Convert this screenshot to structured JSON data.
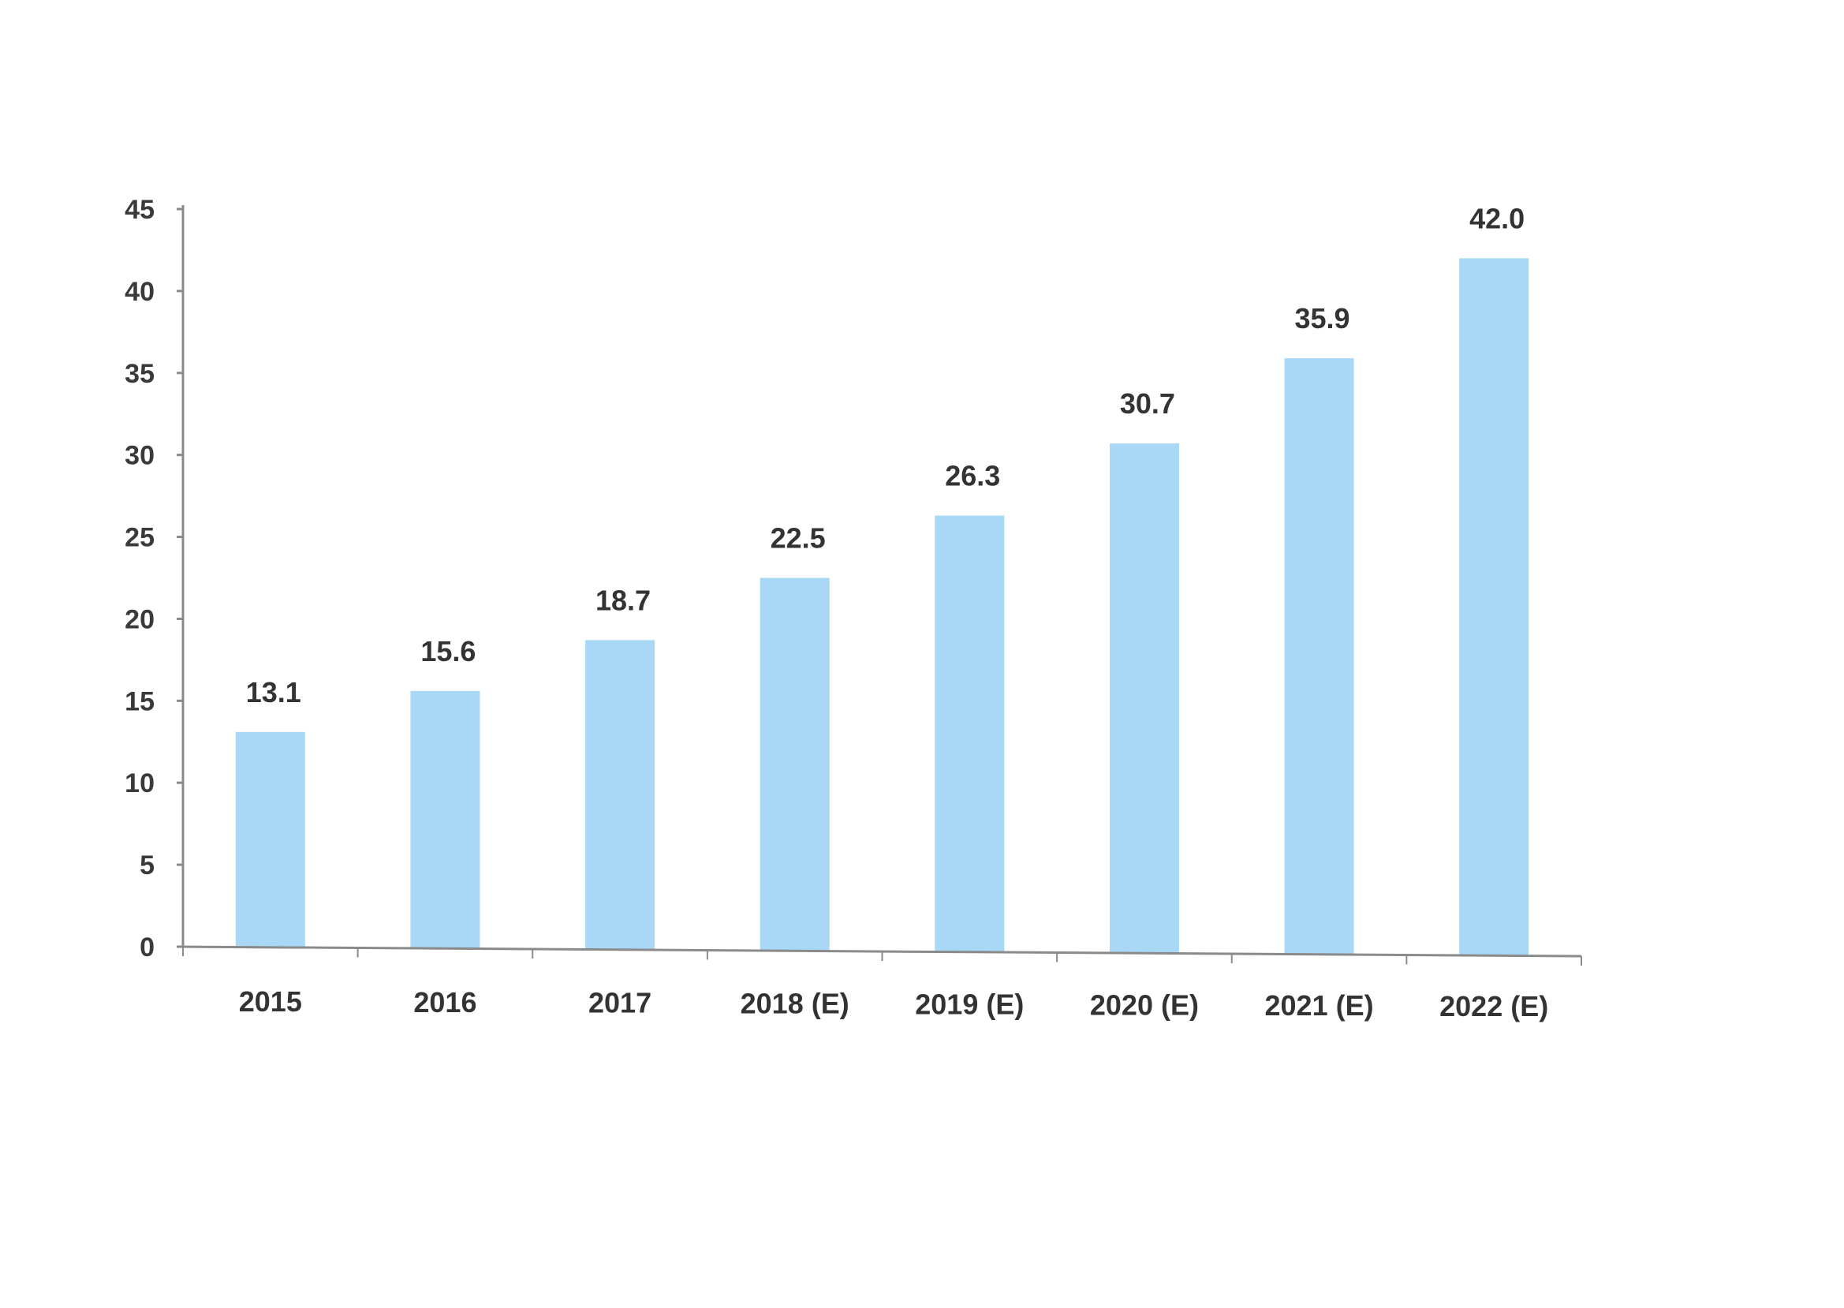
{
  "colors": {
    "bar": "#a8d8f5",
    "axis": "#8a8a8a",
    "text": "#333333"
  },
  "chart_data": {
    "type": "bar",
    "categories": [
      "2015",
      "2016",
      "2017",
      "2018 (E)",
      "2019 (E)",
      "2020 (E)",
      "2021 (E)",
      "2022 (E)"
    ],
    "values": [
      13.1,
      15.6,
      18.7,
      22.5,
      26.3,
      30.7,
      35.9,
      42.0
    ],
    "value_labels": [
      "13.1",
      "15.6",
      "18.7",
      "22.5",
      "26.3",
      "30.7",
      "35.9",
      "42.0"
    ],
    "yticks": [
      "0",
      "5",
      "10",
      "15",
      "20",
      "25",
      "30",
      "35",
      "40",
      "45"
    ],
    "ylim": [
      0,
      45
    ],
    "grid": false,
    "legend": "none"
  }
}
